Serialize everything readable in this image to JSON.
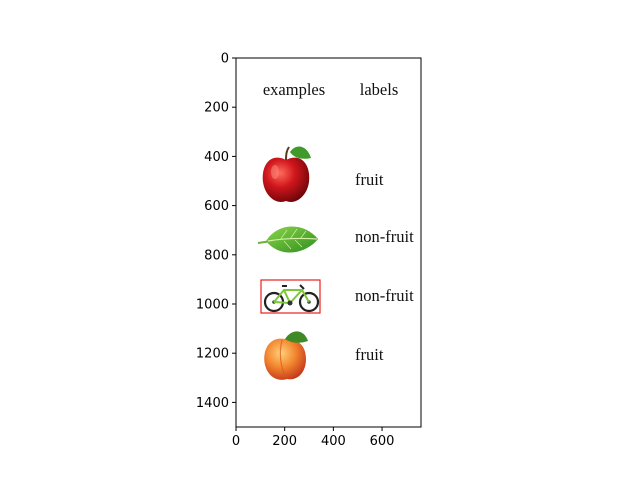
{
  "header": {
    "examples": "examples",
    "labels": "labels"
  },
  "rows": [
    {
      "object": "apple",
      "object_icon": "red-apple-icon",
      "label": "fruit",
      "highlighted": false
    },
    {
      "object": "leaf",
      "object_icon": "green-leaf-icon",
      "label": "non-fruit",
      "highlighted": false
    },
    {
      "object": "bicycle",
      "object_icon": "bicycle-icon",
      "label": "non-fruit",
      "highlighted": true
    },
    {
      "object": "peach",
      "object_icon": "peach-icon",
      "label": "fruit",
      "highlighted": false
    }
  ],
  "axes": {
    "x_ticks": [
      "0",
      "200",
      "400",
      "600"
    ],
    "y_ticks": [
      "0",
      "200",
      "400",
      "600",
      "800",
      "1000",
      "1200",
      "1400"
    ],
    "x_range": [
      0,
      760
    ],
    "y_range": [
      1500,
      0
    ]
  },
  "colors": {
    "highlight_box": "#e8201c",
    "apple": "#c8141a",
    "leaf": "#5fb52a",
    "peach": "#f07a2a"
  }
}
